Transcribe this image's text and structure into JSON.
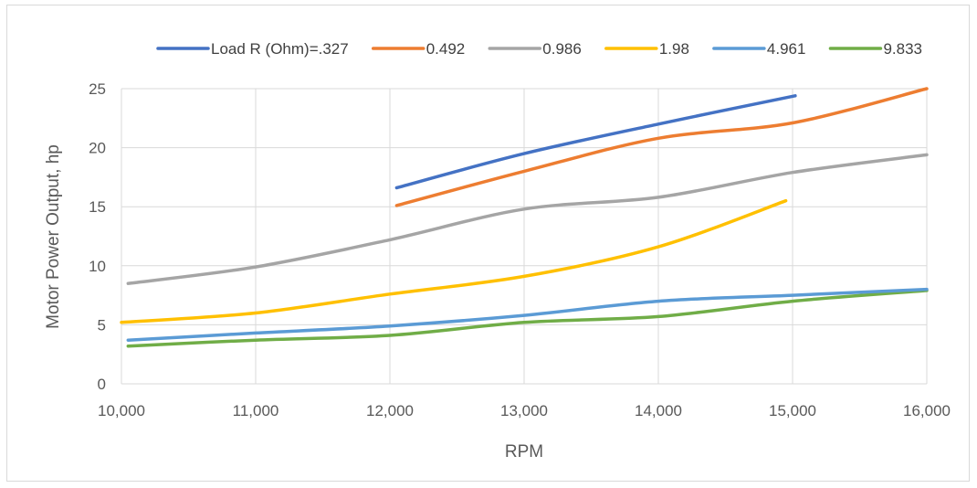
{
  "chart_data": {
    "type": "line",
    "title": "",
    "xlabel": "RPM",
    "ylabel": "Motor Power Output, hp",
    "xlim": [
      10000,
      16000
    ],
    "ylim": [
      0,
      25
    ],
    "x_ticks": [
      10000,
      11000,
      12000,
      13000,
      14000,
      15000,
      16000
    ],
    "x_tick_labels": [
      "10,000",
      "11,000",
      "12,000",
      "13,000",
      "14,000",
      "15,000",
      "16,000"
    ],
    "y_ticks": [
      0,
      5,
      10,
      15,
      20,
      25
    ],
    "y_tick_labels": [
      "0",
      "5",
      "10",
      "15",
      "20",
      "25"
    ],
    "grid": true,
    "legend_position": "top",
    "series": [
      {
        "name": "Load R (Ohm)=.327",
        "color": "#4472C4",
        "x": [
          12050,
          13000,
          14000,
          15020
        ],
        "y": [
          16.6,
          19.5,
          22.0,
          24.4
        ]
      },
      {
        "name": "0.492",
        "color": "#ED7D31",
        "x": [
          12050,
          13000,
          14000,
          15000,
          16000
        ],
        "y": [
          15.1,
          18.0,
          20.8,
          22.1,
          25.0
        ]
      },
      {
        "name": "0.986",
        "color": "#A5A5A5",
        "x": [
          10050,
          11000,
          12000,
          13000,
          14000,
          15000,
          16000
        ],
        "y": [
          8.5,
          9.9,
          12.2,
          14.8,
          15.8,
          17.9,
          19.4
        ]
      },
      {
        "name": "1.98",
        "color": "#FFC000",
        "x": [
          10000,
          11000,
          12000,
          13000,
          14000,
          14950
        ],
        "y": [
          5.2,
          6.0,
          7.6,
          9.1,
          11.6,
          15.5
        ]
      },
      {
        "name": "4.961",
        "color": "#5B9BD5",
        "x": [
          10050,
          11000,
          12000,
          13000,
          14000,
          15000,
          16000
        ],
        "y": [
          3.7,
          4.3,
          4.9,
          5.8,
          7.0,
          7.5,
          8.0
        ]
      },
      {
        "name": "9.833",
        "color": "#70AD47",
        "x": [
          10050,
          11000,
          12000,
          13000,
          14000,
          15000,
          16000
        ],
        "y": [
          3.2,
          3.7,
          4.1,
          5.2,
          5.7,
          7.0,
          7.9
        ]
      }
    ]
  }
}
